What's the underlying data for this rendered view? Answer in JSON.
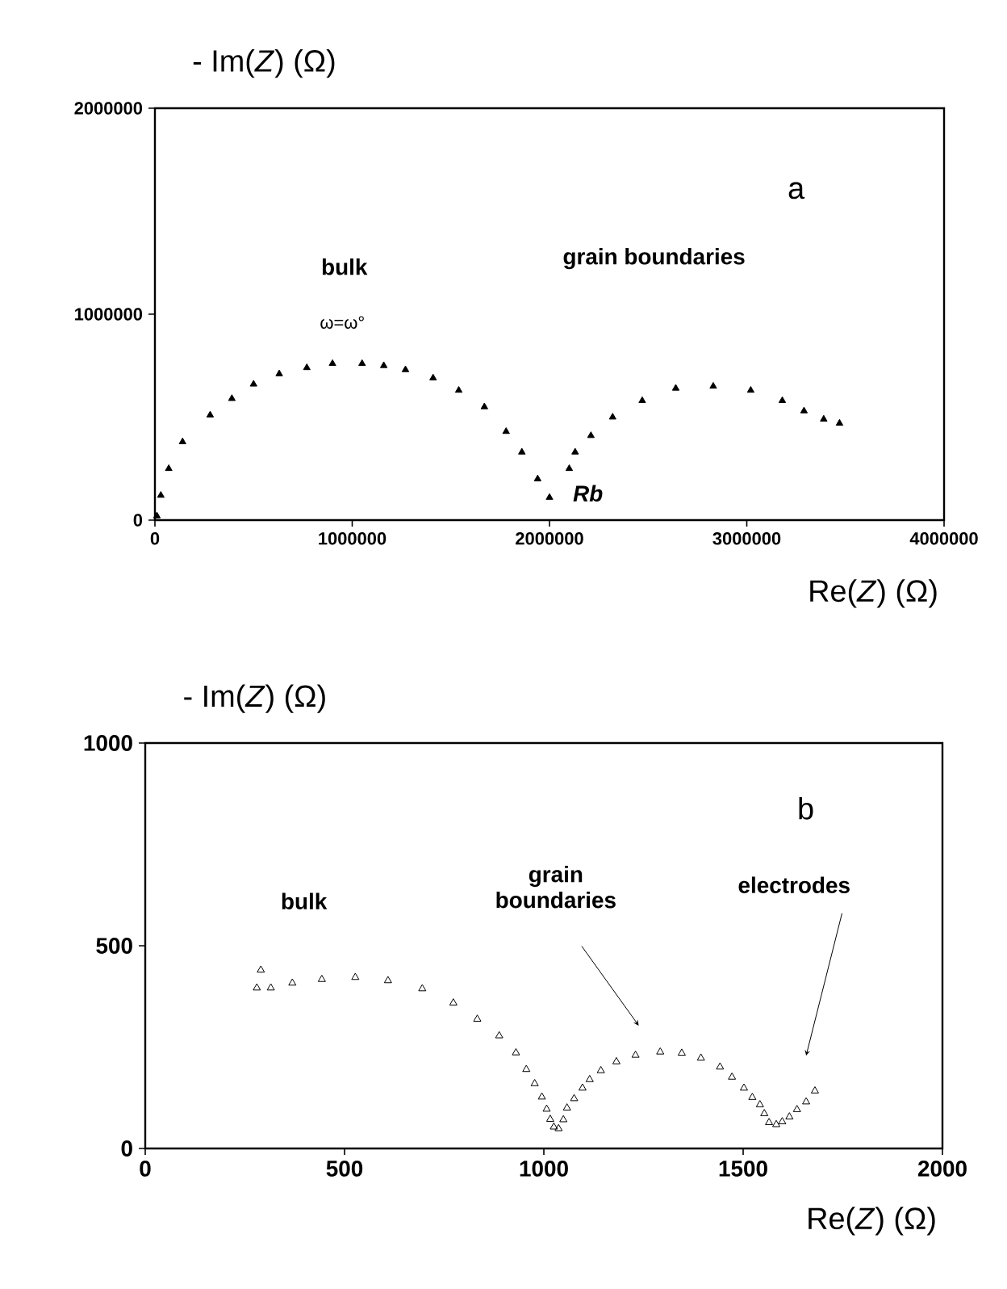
{
  "chart_data": [
    {
      "type": "scatter",
      "ylabel": "- Im(*Z*) (Ω)",
      "xlabel": "Re(*Z*) (Ω)",
      "annotations": [
        "a",
        "bulk",
        "ω=ω°",
        "grain boundaries",
        "Rb"
      ],
      "marker": "triangle",
      "grid": false,
      "xlim": [
        0,
        4000000
      ],
      "xticks": [
        0,
        1000000,
        2000000,
        3000000,
        4000000
      ],
      "ylim": [
        0,
        2000000
      ],
      "yticks": [
        0,
        1000000,
        2000000
      ],
      "series": [
        {
          "color": "#000000",
          "x": [
            10000,
            30000,
            70000,
            140000,
            280000,
            390000,
            500000,
            630000,
            770000,
            900000,
            1050000,
            1160000,
            1270000,
            1410000,
            1540000,
            1670000,
            1780000,
            1860000,
            1940000,
            2000000,
            2100000,
            2130000,
            2210000,
            2320000,
            2470000,
            2640000,
            2830000,
            3020000,
            3180000,
            3290000,
            3390000,
            3470000
          ],
          "values": [
            20000,
            120000,
            250000,
            380000,
            510000,
            590000,
            660000,
            710000,
            740000,
            760000,
            760000,
            750000,
            730000,
            690000,
            630000,
            550000,
            430000,
            330000,
            200000,
            110000,
            250000,
            330000,
            410000,
            500000,
            580000,
            640000,
            650000,
            630000,
            580000,
            530000,
            490000,
            470000
          ]
        }
      ]
    },
    {
      "type": "scatter",
      "ylabel": "- Im(*Z*) (Ω)",
      "xlabel": "Re(*Z*) (Ω)",
      "annotations": [
        "b",
        "bulk",
        "grain boundaries",
        "electrodes"
      ],
      "marker": "triangle",
      "grid": false,
      "xlim": [
        0,
        2000
      ],
      "xticks": [
        0,
        500,
        1000,
        1500,
        2000
      ],
      "ylim": [
        0,
        1000
      ],
      "yticks": [
        0,
        500,
        1000
      ],
      "series": [
        {
          "color": "#000000",
          "x": [
            290,
            280,
            315,
            369,
            443,
            527,
            609,
            695,
            773,
            833,
            888,
            930,
            956,
            977,
            995,
            1007,
            1016,
            1025,
            1037,
            1049,
            1058,
            1076,
            1097,
            1115,
            1143,
            1182,
            1230,
            1292,
            1346,
            1394,
            1442,
            1472,
            1502,
            1523,
            1542,
            1553,
            1565,
            1583,
            1598,
            1616,
            1635,
            1658,
            1680
          ],
          "values": [
            440,
            396,
            396,
            408,
            417,
            422,
            414,
            394,
            359,
            319,
            278,
            236,
            195,
            160,
            127,
            97,
            72,
            53,
            49,
            71,
            100,
            123,
            149,
            170,
            192,
            214,
            230,
            238,
            235,
            223,
            201,
            176,
            149,
            126,
            108,
            86,
            64,
            59,
            66,
            78,
            96,
            115,
            142
          ]
        }
      ]
    }
  ]
}
